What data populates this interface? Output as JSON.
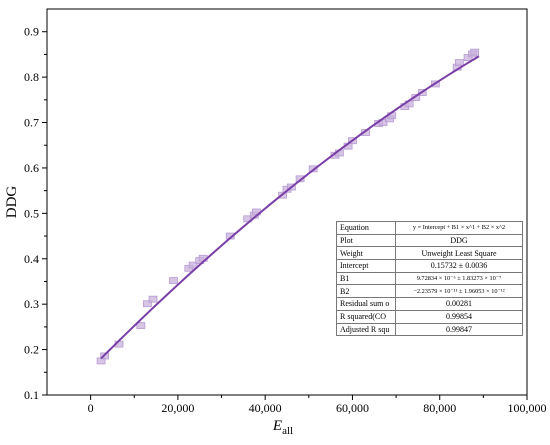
{
  "chart_data": {
    "type": "scatter",
    "xlabel_base": "E",
    "xlabel_sub": "all",
    "ylabel": "DDG",
    "xlim": [
      -10000,
      100000
    ],
    "ylim": [
      0.1,
      0.95
    ],
    "x_ticks": [
      0,
      20000,
      40000,
      60000,
      80000,
      100000
    ],
    "x_tick_labels": [
      "0",
      "20,000",
      "40,000",
      "60,000",
      "80,000",
      "100,000"
    ],
    "y_ticks": [
      0.1,
      0.2,
      0.3,
      0.4,
      0.5,
      0.6,
      0.7,
      0.8,
      0.9
    ],
    "y_tick_labels": [
      "0.1",
      "0.2",
      "0.3",
      "0.4",
      "0.5",
      "0.6",
      "0.7",
      "0.8",
      "0.9"
    ],
    "marker_color": "#c9b1dd",
    "line_color": "#7a3fa6",
    "series": [
      {
        "type": "scatter",
        "x": [
          2400,
          3200,
          6500,
          11500,
          13000,
          14300,
          19000,
          22500,
          23500,
          25000,
          25800,
          32000,
          36000,
          37500,
          38000,
          44000,
          45000,
          46000,
          48000,
          51000,
          56000,
          57000,
          59000,
          60000,
          63000,
          66000,
          67000,
          68500,
          69000,
          72000,
          73000,
          74500,
          76000,
          79000,
          84000,
          84500,
          86500,
          87500,
          88000
        ],
        "y": [
          0.175,
          0.186,
          0.212,
          0.253,
          0.301,
          0.311,
          0.352,
          0.379,
          0.386,
          0.396,
          0.401,
          0.45,
          0.488,
          0.496,
          0.503,
          0.54,
          0.553,
          0.558,
          0.576,
          0.598,
          0.628,
          0.633,
          0.648,
          0.66,
          0.678,
          0.698,
          0.7,
          0.708,
          0.715,
          0.735,
          0.741,
          0.755,
          0.766,
          0.785,
          0.822,
          0.832,
          0.843,
          0.851,
          0.855
        ]
      },
      {
        "type": "line",
        "x": [
          2400,
          89000
        ],
        "fit": {
          "intercept": 0.15732,
          "b1": 9.72834e-06,
          "b2": -2.23579e-11
        }
      }
    ]
  },
  "fit_table": {
    "rows": [
      {
        "key": "Equation",
        "value": "y = Intercept + B1 × x^1  + B2 × x^2",
        "small": true
      },
      {
        "key": "Plot",
        "value": "DDG"
      },
      {
        "key": "Weight",
        "value": "Unweight Least Square"
      },
      {
        "key": "Intercept",
        "value": "0.15732 ± 0.0036"
      },
      {
        "key": "B1",
        "value": "9.72834 × 10⁻⁶ ± 1.83273 × 10⁻⁷",
        "small": true
      },
      {
        "key": "B2",
        "value": "−2.23579 × 10⁻¹¹ ± 1.96053 × 10⁻¹²",
        "small": true
      },
      {
        "key": "Residual sum o",
        "value": "0.00281"
      },
      {
        "key": "R squared(CO",
        "value": "0.99854"
      },
      {
        "key": "Adjusted R squ",
        "value": "0.99847"
      }
    ]
  }
}
